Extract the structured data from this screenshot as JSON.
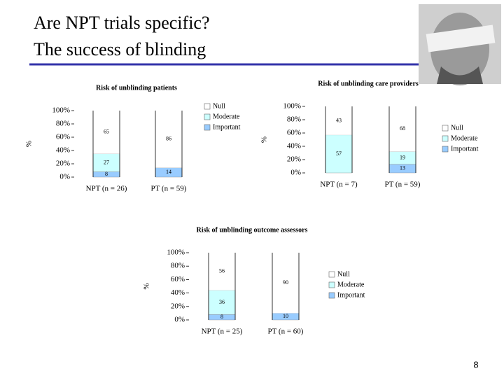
{
  "slide": {
    "title_lines": [
      "Are NPT trials specific?",
      "The success of blinding"
    ],
    "page_number": 8
  },
  "chart_data": [
    {
      "type": "stacked_bar",
      "title": "Risk of unblinding patients",
      "y_label": "%",
      "categories": [
        "NPT (n = 26)",
        "PT (n = 59)"
      ],
      "series": [
        {
          "name": "Important",
          "color": "#99ccff",
          "values": [
            8,
            14
          ]
        },
        {
          "name": "Moderate",
          "color": "#ccffff",
          "values": [
            27,
            0
          ]
        },
        {
          "name": "Null",
          "color": "#ffffff",
          "values": [
            65,
            86
          ]
        }
      ],
      "ylim": [
        0,
        100
      ],
      "yticks": [
        {
          "value": 0,
          "label": "0%"
        },
        {
          "value": 20,
          "label": "20%"
        },
        {
          "value": 40,
          "label": "40%"
        },
        {
          "value": 60,
          "label": "60%"
        },
        {
          "value": 80,
          "label": "80%"
        },
        {
          "value": 100,
          "label": "100%"
        }
      ]
    },
    {
      "type": "stacked_bar",
      "title": "Risk of unblinding care providers",
      "y_label": "%",
      "categories": [
        "NPT (n = 7)",
        "PT (n = 59)"
      ],
      "series": [
        {
          "name": "Important",
          "color": "#99ccff",
          "values": [
            0,
            13
          ]
        },
        {
          "name": "Moderate",
          "color": "#ccffff",
          "values": [
            57,
            19
          ]
        },
        {
          "name": "Null",
          "color": "#ffffff",
          "values": [
            43,
            68
          ]
        }
      ],
      "ylim": [
        0,
        100
      ],
      "yticks": [
        {
          "value": 0,
          "label": "0%"
        },
        {
          "value": 20,
          "label": "20%"
        },
        {
          "value": 40,
          "label": "40%"
        },
        {
          "value": 60,
          "label": "60%"
        },
        {
          "value": 80,
          "label": "80%"
        },
        {
          "value": 100,
          "label": "100%"
        }
      ]
    },
    {
      "type": "stacked_bar",
      "title": "Risk of unblinding outcome assessors",
      "y_label": "%",
      "categories": [
        "NPT (n = 25)",
        "PT (n = 60)"
      ],
      "series": [
        {
          "name": "Important",
          "color": "#99ccff",
          "values": [
            8,
            10
          ]
        },
        {
          "name": "Moderate",
          "color": "#ccffff",
          "values": [
            36,
            0
          ]
        },
        {
          "name": "Null",
          "color": "#ffffff",
          "values": [
            56,
            90
          ]
        }
      ],
      "ylim": [
        0,
        100
      ],
      "yticks": [
        {
          "value": 0,
          "label": "0%"
        },
        {
          "value": 20,
          "label": "20%"
        },
        {
          "value": 40,
          "label": "40%"
        },
        {
          "value": 60,
          "label": "60%"
        },
        {
          "value": 80,
          "label": "80%"
        },
        {
          "value": 100,
          "label": "100%"
        }
      ]
    }
  ]
}
